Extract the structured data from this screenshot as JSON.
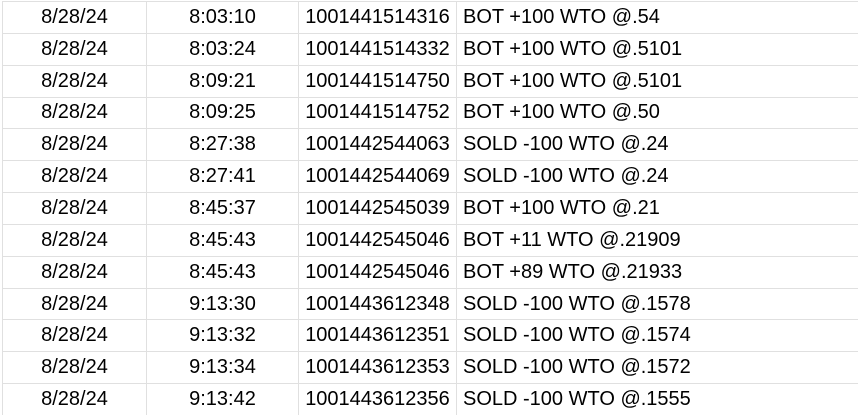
{
  "colors": {
    "gridline": "#e0e0e0",
    "text": "#000000",
    "background": "#ffffff"
  },
  "table": {
    "column_keys": [
      "date",
      "time",
      "order_id",
      "description"
    ],
    "rows": [
      {
        "date": "8/28/24",
        "time": "8:03:10",
        "order_id": "1001441514316",
        "description": "BOT +100 WTO @.54"
      },
      {
        "date": "8/28/24",
        "time": "8:03:24",
        "order_id": "1001441514332",
        "description": "BOT +100 WTO @.5101"
      },
      {
        "date": "8/28/24",
        "time": "8:09:21",
        "order_id": "1001441514750",
        "description": "BOT +100 WTO @.5101"
      },
      {
        "date": "8/28/24",
        "time": "8:09:25",
        "order_id": "1001441514752",
        "description": "BOT +100 WTO @.50"
      },
      {
        "date": "8/28/24",
        "time": "8:27:38",
        "order_id": "1001442544063",
        "description": "SOLD -100 WTO @.24"
      },
      {
        "date": "8/28/24",
        "time": "8:27:41",
        "order_id": "1001442544069",
        "description": "SOLD -100 WTO @.24"
      },
      {
        "date": "8/28/24",
        "time": "8:45:37",
        "order_id": "1001442545039",
        "description": "BOT +100 WTO @.21"
      },
      {
        "date": "8/28/24",
        "time": "8:45:43",
        "order_id": "1001442545046",
        "description": "BOT +11 WTO @.21909"
      },
      {
        "date": "8/28/24",
        "time": "8:45:43",
        "order_id": "1001442545046",
        "description": "BOT +89 WTO @.21933"
      },
      {
        "date": "8/28/24",
        "time": "9:13:30",
        "order_id": "1001443612348",
        "description": "SOLD -100 WTO @.1578"
      },
      {
        "date": "8/28/24",
        "time": "9:13:32",
        "order_id": "1001443612351",
        "description": "SOLD -100 WTO @.1574"
      },
      {
        "date": "8/28/24",
        "time": "9:13:34",
        "order_id": "1001443612353",
        "description": "SOLD -100 WTO @.1572"
      },
      {
        "date": "8/28/24",
        "time": "9:13:42",
        "order_id": "1001443612356",
        "description": "SOLD -100 WTO @.1555"
      }
    ]
  }
}
